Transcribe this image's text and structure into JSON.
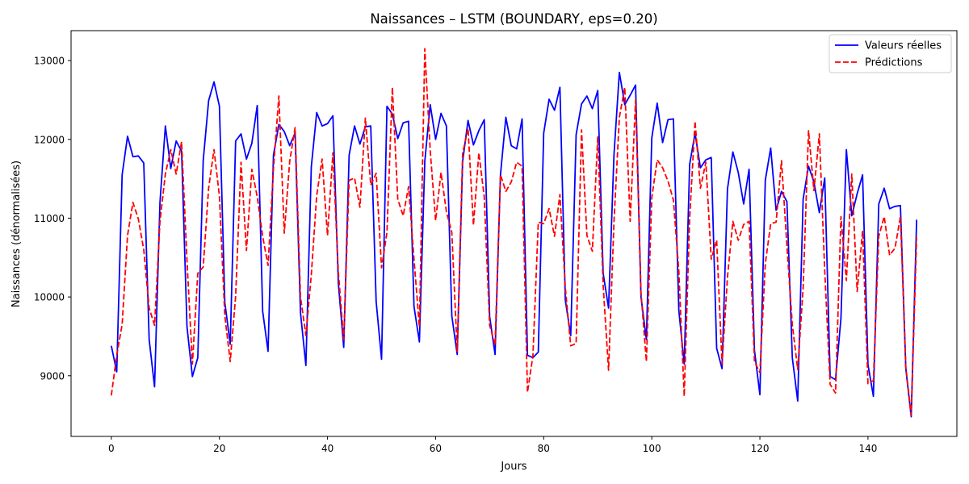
{
  "chart_data": {
    "type": "line",
    "title": "Naissances – LSTM (BOUNDARY, eps=0.20)",
    "xlabel": "Jours",
    "ylabel": "Naissances (dénormalisées)",
    "xlim": [
      -7.45,
      156.45
    ],
    "ylim": [
      8230,
      13380
    ],
    "xticks": [
      0,
      20,
      40,
      60,
      80,
      100,
      120,
      140
    ],
    "yticks": [
      9000,
      10000,
      11000,
      12000,
      13000
    ],
    "grid": false,
    "legend_position": "top-right",
    "series": [
      {
        "name": "Valeurs réelles",
        "color": "#0000ff",
        "style": "solid",
        "values": [
          9380,
          9050,
          11550,
          12040,
          11780,
          11790,
          11700,
          9460,
          8860,
          11200,
          12170,
          11630,
          11980,
          11850,
          9620,
          8990,
          9230,
          11730,
          12490,
          12730,
          12420,
          9930,
          9400,
          11980,
          12070,
          11750,
          11950,
          12430,
          9820,
          9310,
          11800,
          12190,
          12100,
          11920,
          12080,
          9800,
          9130,
          11650,
          12340,
          12170,
          12200,
          12300,
          10180,
          9360,
          11800,
          12170,
          11940,
          12160,
          12170,
          9940,
          9210,
          12420,
          12320,
          12010,
          12210,
          12230,
          9880,
          9430,
          11720,
          12440,
          12000,
          12330,
          12170,
          9760,
          9270,
          11720,
          12240,
          11930,
          12110,
          12250,
          9750,
          9270,
          11550,
          12280,
          11920,
          11880,
          12260,
          9260,
          9230,
          9300,
          12080,
          12510,
          12370,
          12660,
          9960,
          9510,
          12060,
          12450,
          12550,
          12390,
          12620,
          10300,
          9860,
          11800,
          12850,
          12440,
          12560,
          12690,
          10000,
          9460,
          12020,
          12460,
          11960,
          12250,
          12260,
          9830,
          9150,
          11680,
          12080,
          11640,
          11740,
          11770,
          9350,
          9090,
          11370,
          11840,
          11580,
          11180,
          11620,
          9320,
          8760,
          11480,
          11890,
          11100,
          11340,
          11210,
          9230,
          8680,
          11240,
          11660,
          11460,
          11070,
          11510,
          8990,
          8950,
          9730,
          11870,
          11030,
          11310,
          11550,
          9140,
          8740,
          11180,
          11380,
          11120,
          11150,
          11160,
          9090,
          8480,
          10980
        ]
      },
      {
        "name": "Prédictions",
        "color": "#ff0000",
        "style": "dashed",
        "values": [
          8750,
          9260,
          9650,
          10780,
          11200,
          10990,
          10600,
          9860,
          9640,
          10960,
          11560,
          11870,
          11560,
          11970,
          10460,
          9150,
          10300,
          10380,
          11380,
          11870,
          11280,
          9760,
          9180,
          10010,
          11710,
          10590,
          11620,
          11270,
          10770,
          10400,
          11630,
          12550,
          10810,
          11720,
          12150,
          10000,
          9510,
          10280,
          11290,
          11750,
          10780,
          11830,
          10320,
          9460,
          11480,
          11510,
          11140,
          12270,
          11420,
          11570,
          10370,
          10820,
          12660,
          11240,
          11030,
          11400,
          10480,
          9620,
          13150,
          11860,
          10970,
          11580,
          11080,
          10820,
          9310,
          11820,
          12140,
          10910,
          11830,
          11270,
          9640,
          9390,
          11550,
          11340,
          11460,
          11710,
          11660,
          8790,
          9250,
          10950,
          10930,
          11120,
          10770,
          11300,
          10120,
          9380,
          9410,
          12120,
          10780,
          10580,
          12030,
          10150,
          9070,
          10950,
          12280,
          12660,
          10960,
          12500,
          10060,
          9180,
          11260,
          11740,
          11640,
          11470,
          11230,
          10330,
          8740,
          10990,
          12230,
          11380,
          11710,
          10480,
          10720,
          9150,
          10250,
          10960,
          10720,
          10920,
          10960,
          9180,
          9040,
          10420,
          10930,
          10950,
          11730,
          10650,
          9650,
          9080,
          10110,
          12110,
          11350,
          12070,
          10330,
          8890,
          8780,
          11020,
          10210,
          11560,
          10070,
          10840,
          8900,
          8940,
          10770,
          11020,
          10530,
          10620,
          11020,
          9110,
          8500,
          10760
        ]
      }
    ]
  }
}
